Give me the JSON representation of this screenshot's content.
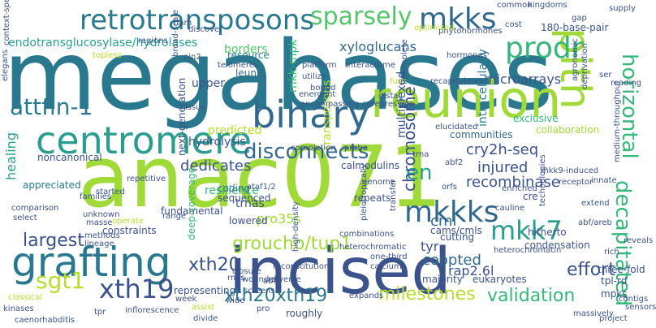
{
  "words": [
    {
      "text": "megabases",
      "color": "#2a788e"
    },
    {
      "text": "anac071",
      "color": "#a0da39"
    },
    {
      "text": "incised",
      "color": "#3b528b"
    },
    {
      "text": "reunion",
      "color": "#a0da39"
    },
    {
      "text": "grafting",
      "color": "#2a788e"
    },
    {
      "text": "pith",
      "color": "#a0da39"
    },
    {
      "text": "binary",
      "color": "#31688e"
    },
    {
      "text": "centromere",
      "color": "#2a9d8f"
    },
    {
      "text": "retrotransposons",
      "color": "#2a788e"
    },
    {
      "text": "sparsely",
      "color": "#57c46b"
    },
    {
      "text": "mkks",
      "color": "#31688e"
    },
    {
      "text": "prodr",
      "color": "#35b779"
    },
    {
      "text": "attfin-1",
      "color": "#2a788e"
    },
    {
      "text": "sgt1",
      "color": "#b5de2b"
    },
    {
      "text": "xth19",
      "color": "#3b528b"
    },
    {
      "text": "mkkks",
      "color": "#31688e"
    },
    {
      "text": "mkk7",
      "color": "#2a9d8f"
    },
    {
      "text": "disconnects",
      "color": "#31688e"
    },
    {
      "text": "en",
      "color": "#2a9d8f"
    },
    {
      "text": "horizontal",
      "color": "#35b779"
    },
    {
      "text": "decapitated",
      "color": "#35b779"
    },
    {
      "text": "chromosome",
      "color": "#3b528b"
    },
    {
      "text": "groucho/tup1",
      "color": "#a0da39"
    },
    {
      "text": "milestones",
      "color": "#b5de2b"
    },
    {
      "text": "xth20",
      "color": "#3b528b"
    },
    {
      "text": "xth20xth19",
      "color": "#2a788e"
    },
    {
      "text": "validation",
      "color": "#35b779"
    },
    {
      "text": "effort",
      "color": "#3b528b"
    },
    {
      "text": "largest",
      "color": "#3b528b"
    },
    {
      "text": "cry2h-seq",
      "color": "#3b528b"
    },
    {
      "text": "recombinase",
      "color": "#3b528b"
    },
    {
      "text": "cml",
      "color": "#31688e"
    },
    {
      "text": "coopted",
      "color": "#31688e"
    },
    {
      "text": "injured",
      "color": "#3b528b"
    },
    {
      "text": "tyr",
      "color": "#3b528b"
    },
    {
      "text": "rap2.6l",
      "color": "#3b528b"
    },
    {
      "text": "pro35s",
      "color": "#a0da39"
    },
    {
      "text": "endotransglucosylase/hydrolases",
      "color": "#2a9d8f"
    },
    {
      "text": "xyloglucans",
      "color": "#31688e"
    },
    {
      "text": "mkk-mpk",
      "color": "#35b779"
    },
    {
      "text": "borders",
      "color": "#57c46b"
    },
    {
      "text": "resource",
      "color": "#2a788e"
    },
    {
      "text": "microarrays",
      "color": "#3b528b"
    },
    {
      "text": "predicted",
      "color": "#b5de2b"
    },
    {
      "text": "dedicates",
      "color": "#3b528b"
    },
    {
      "text": "resilience",
      "color": "#35b779"
    },
    {
      "text": "trnas",
      "color": "#3b528b"
    },
    {
      "text": "hydrolysis",
      "color": "#3b528b"
    },
    {
      "text": "upper",
      "color": "#3b528b"
    },
    {
      "text": "leunig",
      "color": "#31688e"
    },
    {
      "text": "noncanonical",
      "color": "#3b528b"
    },
    {
      "text": "healing",
      "color": "#2a9d8f"
    },
    {
      "text": "appreciated",
      "color": "#2a788e"
    },
    {
      "text": "fundamental",
      "color": "#3b528b"
    },
    {
      "text": "constraints",
      "color": "#3b528b"
    },
    {
      "text": "representing",
      "color": "#3b528b"
    },
    {
      "text": "multiplexed",
      "color": "#3b528b"
    },
    {
      "text": "intracellularly",
      "color": "#2a788e"
    },
    {
      "text": "communities",
      "color": "#31688e"
    },
    {
      "text": "collaboration",
      "color": "#a0da39"
    },
    {
      "text": "exclusive",
      "color": "#35b779"
    },
    {
      "text": "calmodulins",
      "color": "#3b528b"
    },
    {
      "text": "next-generation",
      "color": "#3b528b"
    },
    {
      "text": "deep-coverage",
      "color": "#35b779"
    },
    {
      "text": "cutting",
      "color": "#3b528b"
    },
    {
      "text": "coding",
      "color": "#2a788e"
    },
    {
      "text": "sequenced",
      "color": "#3b528b"
    },
    {
      "text": "repeats",
      "color": "#3b528b"
    },
    {
      "text": "lowered",
      "color": "#3b528b"
    },
    {
      "text": "cams/cmls",
      "color": "#3b528b"
    },
    {
      "text": "majority",
      "color": "#3b528b"
    },
    {
      "text": "roughly",
      "color": "#3b528b"
    },
    {
      "text": "eukaryotes",
      "color": "#3b528b"
    },
    {
      "text": "condensation",
      "color": "#3b528b"
    },
    {
      "text": "hitherto",
      "color": "#3b528b"
    },
    {
      "text": "cre",
      "color": "#3b528b"
    },
    {
      "text": "three-fold",
      "color": "#3b528b"
    },
    {
      "text": "tpl-rd",
      "color": "#3b528b"
    },
    {
      "text": "mpks",
      "color": "#3b528b"
    },
    {
      "text": "transposons",
      "color": "#b5de2b"
    },
    {
      "text": "180-base-pair",
      "color": "#3b528b"
    },
    {
      "text": "supply",
      "color": "#3b528b"
    },
    {
      "text": "cost",
      "color": "#3b528b"
    },
    {
      "text": "regions",
      "color": "#3b528b"
    },
    {
      "text": "topless",
      "color": "#b5de2b"
    },
    {
      "text": "ein2",
      "color": "#3b528b"
    },
    {
      "text": "platform",
      "color": "#3b528b"
    },
    {
      "text": "interactome",
      "color": "#3b528b"
    },
    {
      "text": "hormones",
      "color": "#3b528b"
    },
    {
      "text": "recapitulates",
      "color": "#3b528b"
    },
    {
      "text": "bound",
      "color": "#3b528b"
    },
    {
      "text": "fuse",
      "color": "#b5de2b"
    },
    {
      "text": "distal",
      "color": "#3b528b"
    },
    {
      "text": "encompassing",
      "color": "#3b528b"
    },
    {
      "text": "corepressors",
      "color": "#3b528b"
    },
    {
      "text": "issue",
      "color": "#3b528b"
    },
    {
      "text": "ataf1/2",
      "color": "#3b528b"
    },
    {
      "text": "abf2",
      "color": "#3b528b"
    },
    {
      "text": "genome",
      "color": "#3b528b"
    },
    {
      "text": "transfer",
      "color": "#3b528b"
    },
    {
      "text": "trna",
      "color": "#3b528b"
    },
    {
      "text": "completion",
      "color": "#3b528b"
    },
    {
      "text": "probe",
      "color": "#3b528b"
    },
    {
      "text": "elucidated",
      "color": "#3b528b"
    },
    {
      "text": "mkk9-induced",
      "color": "#3b528b"
    },
    {
      "text": "receptor",
      "color": "#3b528b"
    },
    {
      "text": "heterochromatin",
      "color": "#3b528b"
    },
    {
      "text": "heterochromatic",
      "color": "#3b528b"
    },
    {
      "text": "one-third",
      "color": "#3b528b"
    },
    {
      "text": "calcium",
      "color": "#3b528b"
    },
    {
      "text": "closure",
      "color": "#3b528b"
    },
    {
      "text": "reconstitution",
      "color": "#3b528b"
    },
    {
      "text": "wounded",
      "color": "#3b528b"
    },
    {
      "text": "screens",
      "color": "#3b528b"
    },
    {
      "text": "rnas",
      "color": "#3b528b"
    },
    {
      "text": "diverse",
      "color": "#3b528b"
    },
    {
      "text": "abf3",
      "color": "#3b528b"
    },
    {
      "text": "pro",
      "color": "#3b528b"
    },
    {
      "text": "assist",
      "color": "#b5de2b"
    },
    {
      "text": "divide",
      "color": "#3b528b"
    },
    {
      "text": "week",
      "color": "#3b528b"
    },
    {
      "text": "inflorescence",
      "color": "#3b528b"
    },
    {
      "text": "caenorhabditis",
      "color": "#3b528b"
    },
    {
      "text": "kinases",
      "color": "#3b528b"
    },
    {
      "text": "tpr",
      "color": "#3b528b"
    },
    {
      "text": "classical",
      "color": "#b5de2b"
    },
    {
      "text": "methods",
      "color": "#3b528b"
    },
    {
      "text": "lineage",
      "color": "#3b528b"
    },
    {
      "text": "unknown",
      "color": "#3b528b"
    },
    {
      "text": "masse",
      "color": "#3b528b"
    },
    {
      "text": "select",
      "color": "#3b528b"
    },
    {
      "text": "comparison",
      "color": "#3b528b"
    },
    {
      "text": "families",
      "color": "#3b528b"
    },
    {
      "text": "started",
      "color": "#3b528b"
    },
    {
      "text": "context-specific",
      "color": "#3b528b"
    },
    {
      "text": "elegans",
      "color": "#3b528b"
    },
    {
      "text": "discover",
      "color": "#3b528b"
    },
    {
      "text": "telomeres",
      "color": "#3b528b"
    },
    {
      "text": "phytohormones",
      "color": "#3b528b"
    },
    {
      "text": "optimized",
      "color": "#b5de2b"
    },
    {
      "text": "common",
      "color": "#3b528b"
    },
    {
      "text": "kingdoms",
      "color": "#3b528b"
    },
    {
      "text": "gap",
      "color": "#3b528b"
    },
    {
      "text": "massively",
      "color": "#3b528b"
    },
    {
      "text": "contigs",
      "color": "#3b528b"
    },
    {
      "text": "project",
      "color": "#3b528b"
    },
    {
      "text": "sensors",
      "color": "#3b528b"
    },
    {
      "text": "rich",
      "color": "#3b528b"
    },
    {
      "text": "reveals",
      "color": "#3b528b"
    },
    {
      "text": "extend",
      "color": "#3b528b"
    },
    {
      "text": "innate",
      "color": "#3b528b"
    },
    {
      "text": "medium-throughput",
      "color": "#3b528b"
    },
    {
      "text": "enriched",
      "color": "#3b528b"
    },
    {
      "text": "technologies",
      "color": "#3b528b"
    },
    {
      "text": "cauline",
      "color": "#3b528b"
    },
    {
      "text": "combinations",
      "color": "#3b528b"
    },
    {
      "text": "high-density",
      "color": "#3b528b"
    },
    {
      "text": "range",
      "color": "#3b528b"
    },
    {
      "text": "operate",
      "color": "#b5de2b"
    },
    {
      "text": "utilize",
      "color": "#3b528b"
    },
    {
      "text": "energent",
      "color": "#3b528b"
    },
    {
      "text": "incomplete",
      "color": "#3b528b"
    },
    {
      "text": "ser",
      "color": "#3b528b"
    },
    {
      "text": "reading",
      "color": "#3b528b"
    },
    {
      "text": "agronomic",
      "color": "#3b528b"
    },
    {
      "text": "deprivation",
      "color": "#3b528b"
    },
    {
      "text": "nam",
      "color": "#3b528b"
    },
    {
      "text": "broad-scale",
      "color": "#3b528b"
    },
    {
      "text": "wide",
      "color": "#3b528b"
    },
    {
      "text": "repetitive",
      "color": "#3b528b"
    },
    {
      "text": "orfs",
      "color": "#3b528b"
    },
    {
      "text": "pleiotropically",
      "color": "#3b528b"
    },
    {
      "text": "expands",
      "color": "#3b528b"
    },
    {
      "text": "abf/areb",
      "color": "#3b528b"
    }
  ]
}
